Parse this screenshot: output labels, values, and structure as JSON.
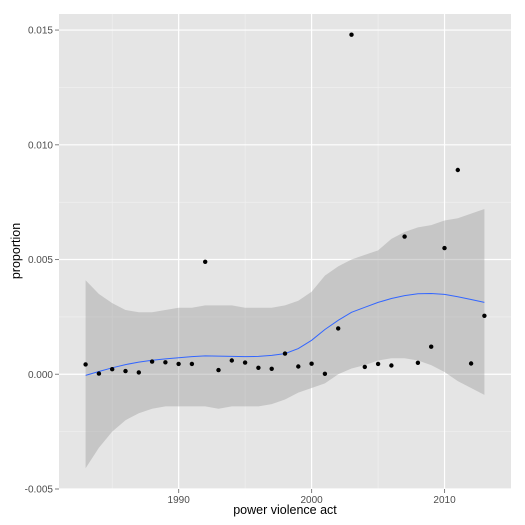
{
  "chart_data": {
    "type": "scatter",
    "title": "",
    "xlabel": "power violence act",
    "ylabel": "proportion",
    "xlim": [
      1981,
      2015
    ],
    "ylim": [
      -0.005,
      0.0157
    ],
    "x_ticks": [
      1990,
      2000,
      2010
    ],
    "x_tick_labels": [
      "1990",
      "2000",
      "2010"
    ],
    "y_ticks": [
      -0.005,
      0.0,
      0.005,
      0.01,
      0.015
    ],
    "y_tick_labels": [
      "-0.005",
      "0.000",
      "0.005",
      "0.010",
      "0.015"
    ],
    "grid": true,
    "legend": "none",
    "colors": {
      "panel": "#e5e5e5",
      "grid_major": "#ffffff",
      "grid_minor": "#f2f2f2",
      "points": "#000000",
      "smooth_line": "#3366ff",
      "ribbon": "#999999"
    },
    "series": [
      {
        "type": "scatter",
        "x": [
          1983,
          1984,
          1985,
          1986,
          1987,
          1988,
          1989,
          1990,
          1991,
          1992,
          1993,
          1994,
          1995,
          1996,
          1997,
          1998,
          1999,
          2000,
          2001,
          2002,
          2003,
          2004,
          2005,
          2006,
          2007,
          2008,
          2009,
          2010,
          2011,
          2012,
          2013
        ],
        "y": [
          0.00043,
          3e-05,
          0.00022,
          0.00014,
          8e-05,
          0.00055,
          0.00052,
          0.00045,
          0.00045,
          0.0049,
          0.00018,
          0.0006,
          0.00051,
          0.00028,
          0.00024,
          0.0009,
          0.00034,
          0.00046,
          2e-05,
          0.002,
          0.0148,
          0.00032,
          0.00045,
          0.00038,
          0.006,
          0.0005,
          0.0012,
          0.0055,
          0.0089,
          0.00047,
          0.00255
        ]
      },
      {
        "type": "line",
        "x": [
          1983,
          1984,
          1985,
          1986,
          1987,
          1988,
          1989,
          1990,
          1991,
          1992,
          1993,
          1994,
          1995,
          1996,
          1997,
          1998,
          1999,
          2000,
          2001,
          2002,
          2003,
          2004,
          2005,
          2006,
          2007,
          2008,
          2009,
          2010,
          2011,
          2012,
          2013
        ],
        "y": [
          -5e-05,
          0.00012,
          0.00028,
          0.00042,
          0.00053,
          0.00061,
          0.00067,
          0.00072,
          0.00077,
          0.0008,
          0.00079,
          0.00078,
          0.00077,
          0.00078,
          0.00082,
          0.0009,
          0.00112,
          0.00148,
          0.00195,
          0.00235,
          0.0027,
          0.00292,
          0.00313,
          0.0033,
          0.00343,
          0.00351,
          0.00352,
          0.00348,
          0.00338,
          0.00326,
          0.00313
        ],
        "lower": [
          -0.0041,
          -0.0032,
          -0.0025,
          -0.002,
          -0.0017,
          -0.0015,
          -0.0014,
          -0.0014,
          -0.0014,
          -0.0014,
          -0.0015,
          -0.0014,
          -0.0014,
          -0.0014,
          -0.0013,
          -0.0011,
          -0.0008,
          -0.0006,
          -0.0004,
          0.0,
          0.00025,
          0.0004,
          0.0006,
          0.0007,
          0.0007,
          0.0006,
          0.0004,
          0.0001,
          -0.0003,
          -0.0006,
          -0.0009
        ],
        "upper": [
          0.0041,
          0.0035,
          0.0031,
          0.0028,
          0.0027,
          0.0027,
          0.0028,
          0.0029,
          0.0029,
          0.003,
          0.003,
          0.003,
          0.0029,
          0.0029,
          0.0029,
          0.003,
          0.0032,
          0.0036,
          0.0043,
          0.0047,
          0.005,
          0.0052,
          0.0054,
          0.0059,
          0.0062,
          0.0064,
          0.0065,
          0.0067,
          0.0068,
          0.007,
          0.0072
        ]
      }
    ]
  }
}
